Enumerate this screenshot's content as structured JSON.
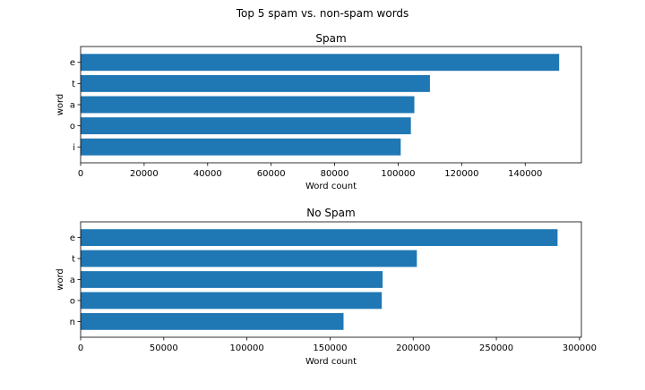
{
  "figure": {
    "suptitle": "Top 5 spam vs. non-spam words"
  },
  "colors": {
    "bar": "#1f77b4",
    "axis": "#000000",
    "background": "#ffffff"
  },
  "chart_data": [
    {
      "type": "bar",
      "orientation": "horizontal",
      "title": "Spam",
      "xlabel": "Word count",
      "ylabel": "word",
      "categories": [
        "e",
        "t",
        "a",
        "o",
        "i"
      ],
      "values": [
        150700,
        110000,
        105100,
        104000,
        100800
      ],
      "xlim": [
        0,
        157700
      ],
      "xticks": [
        0,
        20000,
        40000,
        60000,
        80000,
        100000,
        120000,
        140000
      ],
      "grid": false
    },
    {
      "type": "bar",
      "orientation": "horizontal",
      "title": "No Spam",
      "xlabel": "Word count",
      "ylabel": "word",
      "categories": [
        "e",
        "t",
        "a",
        "o",
        "n"
      ],
      "values": [
        286800,
        202200,
        181600,
        181100,
        158100
      ],
      "xlim": [
        0,
        301140
      ],
      "xticks": [
        0,
        50000,
        100000,
        150000,
        200000,
        250000,
        300000
      ],
      "grid": false
    }
  ]
}
